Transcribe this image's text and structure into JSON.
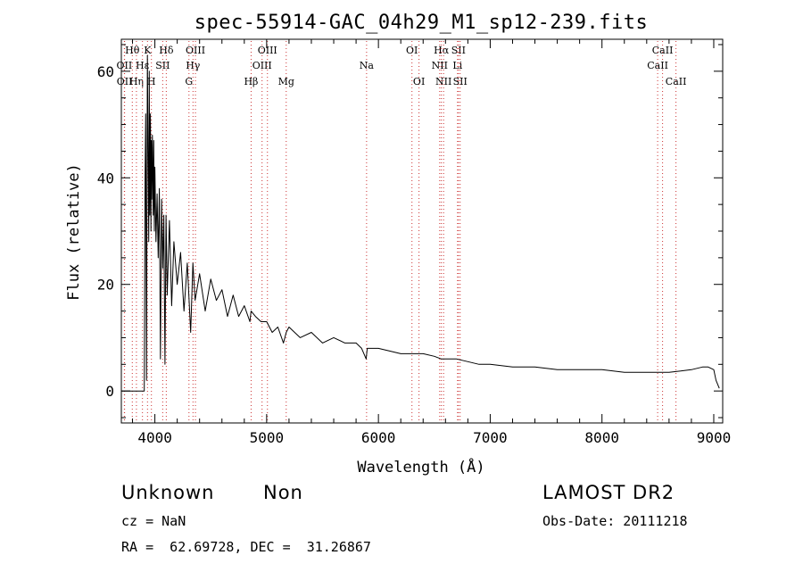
{
  "chart_data": {
    "type": "line",
    "title": "spec-55914-GAC_04h29_M1_sp12-239.fits",
    "xlabel": "Wavelength (Å)",
    "ylabel": "Flux (relative)",
    "xlim": [
      3700,
      9080
    ],
    "ylim": [
      -6,
      66
    ],
    "xticks": [
      4000,
      5000,
      6000,
      7000,
      8000,
      9000
    ],
    "yticks": [
      0,
      20,
      40,
      60
    ],
    "grid": false,
    "legend": "none",
    "line_color": "#000000",
    "marker_color": "#cc3333",
    "series": [
      {
        "x": [
          3700,
          3880,
          3880,
          3905,
          3912,
          3918,
          3925,
          3933,
          3940,
          3945,
          3950,
          3955,
          3960,
          3965,
          3968,
          3972,
          3978,
          3985,
          3990,
          3995,
          4000,
          4010,
          4020,
          4030,
          4040,
          4050,
          4060,
          4070,
          4080,
          4090,
          4100,
          4110,
          4130,
          4150,
          4170,
          4200,
          4230,
          4260,
          4290,
          4320,
          4340,
          4360,
          4400,
          4450,
          4500,
          4550,
          4600,
          4650,
          4700,
          4750,
          4800,
          4850,
          4861,
          4900,
          4950,
          5000,
          5050,
          5100,
          5150,
          5175,
          5200,
          5300,
          5400,
          5500,
          5600,
          5700,
          5800,
          5850,
          5890,
          5900,
          5950,
          6000,
          6100,
          6200,
          6300,
          6400,
          6500,
          6563,
          6600,
          6700,
          6800,
          6900,
          7000,
          7200,
          7400,
          7600,
          7800,
          8000,
          8200,
          8400,
          8600,
          8800,
          8900,
          8950,
          9000,
          9020,
          9050
        ],
        "y": [
          0,
          0,
          0,
          0,
          40,
          52,
          2,
          63,
          42,
          28,
          60,
          33,
          52,
          30,
          47,
          36,
          48,
          33,
          47,
          30,
          42,
          28,
          37,
          25,
          38,
          6,
          36,
          23,
          33,
          5,
          33,
          18,
          32,
          16,
          28,
          20,
          26,
          15,
          24,
          11,
          24,
          17,
          22,
          15,
          21,
          17,
          19,
          14,
          18,
          14,
          16,
          13,
          15,
          14,
          13,
          13,
          11,
          12,
          9,
          11,
          12,
          10,
          11,
          9,
          10,
          9,
          9,
          8,
          6,
          8,
          8,
          8,
          7.5,
          7,
          7,
          7,
          6.5,
          6,
          6,
          6,
          5.5,
          5,
          5,
          4.5,
          4.5,
          4,
          4,
          4,
          3.5,
          3.5,
          3.5,
          4,
          4.5,
          4.5,
          4,
          2,
          0.5
        ]
      }
    ],
    "line_markers": [
      {
        "label": "Hθ",
        "x": 3798,
        "row": 0
      },
      {
        "label": "OII",
        "x": 3727,
        "row": 1
      },
      {
        "label": "OII",
        "x": 3729,
        "row": 2
      },
      {
        "label": "Hη",
        "x": 3835,
        "row": 2
      },
      {
        "label": "Hε",
        "x": 3889,
        "row": 1
      },
      {
        "label": "K",
        "x": 3934,
        "row": 0
      },
      {
        "label": "H",
        "x": 3969,
        "row": 2
      },
      {
        "label": "SII",
        "x": 4070,
        "row": 1
      },
      {
        "label": "Hδ",
        "x": 4102,
        "row": 0
      },
      {
        "label": "OIII",
        "x": 4363,
        "row": 0
      },
      {
        "label": "Hγ",
        "x": 4341,
        "row": 1
      },
      {
        "label": "G",
        "x": 4305,
        "row": 2
      },
      {
        "label": "Hβ",
        "x": 4861,
        "row": 2
      },
      {
        "label": "OIII",
        "x": 5007,
        "row": 0
      },
      {
        "label": "OIII",
        "x": 4959,
        "row": 1
      },
      {
        "label": "Mg",
        "x": 5175,
        "row": 2
      },
      {
        "label": "Na",
        "x": 5894,
        "row": 1
      },
      {
        "label": "OI",
        "x": 6300,
        "row": 0
      },
      {
        "label": "OI",
        "x": 6363,
        "row": 2
      },
      {
        "label": "Hα",
        "x": 6563,
        "row": 0
      },
      {
        "label": "NII",
        "x": 6548,
        "row": 1
      },
      {
        "label": "NII",
        "x": 6583,
        "row": 2
      },
      {
        "label": "SII",
        "x": 6716,
        "row": 0
      },
      {
        "label": "Li",
        "x": 6708,
        "row": 1
      },
      {
        "label": "SII",
        "x": 6731,
        "row": 2
      },
      {
        "label": "CaII",
        "x": 8542,
        "row": 0
      },
      {
        "label": "CaII",
        "x": 8498,
        "row": 1
      },
      {
        "label": "CaII",
        "x": 8662,
        "row": 2
      }
    ]
  },
  "info": {
    "class": "Unknown",
    "subclass": "Non",
    "survey": "LAMOST DR2",
    "cz": "cz = NaN",
    "obs_date": "Obs-Date: 20111218",
    "coords": "RA =  62.69728, DEC =  31.26867"
  }
}
